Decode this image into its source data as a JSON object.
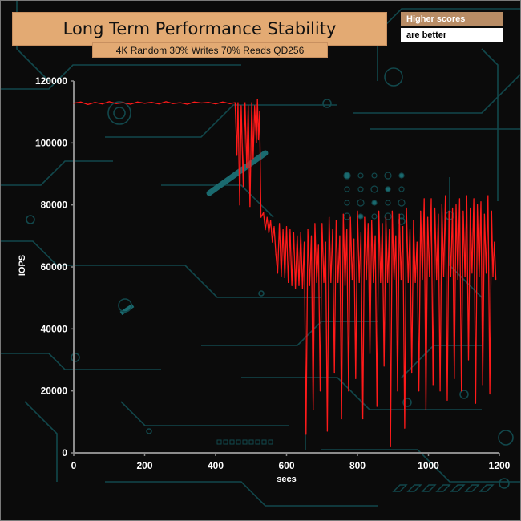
{
  "header": {
    "title": "Long Term Performance Stability",
    "subtitle": "4K Random 30% Writes 70% Reads QD256"
  },
  "badge": {
    "line1": "Higher scores",
    "line2": "are better"
  },
  "colors": {
    "series": "#ff1a1a",
    "title_bg": "#e3aa73",
    "badge_bg": "#b88c65",
    "background": "#0b0b0b",
    "circuit": "#12484c"
  },
  "chart_data": {
    "type": "line",
    "title": "Long Term Performance Stability",
    "subtitle": "4K Random 30% Writes 70% Reads QD256",
    "xlabel": "secs",
    "ylabel": "IOPS",
    "xlim": [
      0,
      1200
    ],
    "ylim": [
      0,
      120000
    ],
    "x_ticks": [
      0,
      200,
      400,
      600,
      800,
      1000,
      1200
    ],
    "y_ticks": [
      0,
      20000,
      40000,
      60000,
      80000,
      100000,
      120000
    ],
    "grid": false,
    "legend": "none",
    "series": [
      {
        "points": [
          [
            0,
            112800
          ],
          [
            20,
            113200
          ],
          [
            40,
            112400
          ],
          [
            60,
            113100
          ],
          [
            80,
            112600
          ],
          [
            100,
            113300
          ],
          [
            120,
            112700
          ],
          [
            140,
            113000
          ],
          [
            160,
            112500
          ],
          [
            180,
            113200
          ],
          [
            200,
            112800
          ],
          [
            220,
            113100
          ],
          [
            240,
            112600
          ],
          [
            260,
            113300
          ],
          [
            280,
            112700
          ],
          [
            300,
            113000
          ],
          [
            320,
            112500
          ],
          [
            340,
            113200
          ],
          [
            360,
            112900
          ],
          [
            380,
            113100
          ],
          [
            400,
            112600
          ],
          [
            420,
            113200
          ],
          [
            440,
            112700
          ],
          [
            455,
            113000
          ],
          [
            460,
            96000
          ],
          [
            463,
            113000
          ],
          [
            468,
            80000
          ],
          [
            472,
            112000
          ],
          [
            478,
            86000
          ],
          [
            483,
            113000
          ],
          [
            488,
            92000
          ],
          [
            492,
            112000
          ],
          [
            497,
            79500
          ],
          [
            502,
            113000
          ],
          [
            506,
            95000
          ],
          [
            510,
            112000
          ],
          [
            515,
            100000
          ],
          [
            518,
            114000
          ],
          [
            521,
            101000
          ],
          [
            524,
            110000
          ],
          [
            528,
            76000
          ],
          [
            535,
            77500
          ],
          [
            540,
            72000
          ],
          [
            545,
            76000
          ],
          [
            550,
            71000
          ],
          [
            555,
            75000
          ],
          [
            560,
            68000
          ],
          [
            565,
            73000
          ],
          [
            570,
            64000
          ],
          [
            575,
            58000
          ],
          [
            580,
            74000
          ],
          [
            585,
            57000
          ],
          [
            590,
            72000
          ],
          [
            595,
            56500
          ],
          [
            600,
            73000
          ],
          [
            605,
            55000
          ],
          [
            610,
            72000
          ],
          [
            615,
            54000
          ],
          [
            620,
            71000
          ],
          [
            625,
            53000
          ],
          [
            630,
            70000
          ],
          [
            635,
            54000
          ],
          [
            640,
            71000
          ],
          [
            645,
            53000
          ],
          [
            650,
            68000
          ],
          [
            655,
            6000
          ],
          [
            660,
            72000
          ],
          [
            665,
            54000
          ],
          [
            670,
            70000
          ],
          [
            675,
            14000
          ],
          [
            680,
            74000
          ],
          [
            685,
            55000
          ],
          [
            690,
            67000
          ],
          [
            695,
            20000
          ],
          [
            700,
            74000
          ],
          [
            705,
            55000
          ],
          [
            710,
            68000
          ],
          [
            715,
            7000
          ],
          [
            720,
            76000
          ],
          [
            725,
            55000
          ],
          [
            730,
            72000
          ],
          [
            735,
            26000
          ],
          [
            740,
            75000
          ],
          [
            745,
            55000
          ],
          [
            750,
            70000
          ],
          [
            755,
            11000
          ],
          [
            760,
            77000
          ],
          [
            765,
            54000
          ],
          [
            770,
            72000
          ],
          [
            775,
            20000
          ],
          [
            780,
            76000
          ],
          [
            785,
            56000
          ],
          [
            790,
            69000
          ],
          [
            795,
            24000
          ],
          [
            800,
            78000
          ],
          [
            805,
            55000
          ],
          [
            810,
            71000
          ],
          [
            815,
            11000
          ],
          [
            820,
            76000
          ],
          [
            825,
            56000
          ],
          [
            830,
            74000
          ],
          [
            835,
            32000
          ],
          [
            840,
            75000
          ],
          [
            845,
            55000
          ],
          [
            850,
            70000
          ],
          [
            855,
            15000
          ],
          [
            860,
            78000
          ],
          [
            865,
            55000
          ],
          [
            870,
            74000
          ],
          [
            875,
            28000
          ],
          [
            880,
            76000
          ],
          [
            885,
            55000
          ],
          [
            890,
            72000
          ],
          [
            893,
            2000
          ],
          [
            898,
            78000
          ],
          [
            903,
            56000
          ],
          [
            908,
            70000
          ],
          [
            913,
            20000
          ],
          [
            918,
            77000
          ],
          [
            923,
            56000
          ],
          [
            928,
            73000
          ],
          [
            933,
            8000
          ],
          [
            938,
            79000
          ],
          [
            943,
            55000
          ],
          [
            948,
            72000
          ],
          [
            953,
            26000
          ],
          [
            958,
            75000
          ],
          [
            963,
            55000
          ],
          [
            968,
            68000
          ],
          [
            973,
            20000
          ],
          [
            978,
            78000
          ],
          [
            983,
            56000
          ],
          [
            988,
            82000
          ],
          [
            993,
            14000
          ],
          [
            998,
            76000
          ],
          [
            1003,
            57000
          ],
          [
            1008,
            82000
          ],
          [
            1013,
            22000
          ],
          [
            1018,
            79000
          ],
          [
            1023,
            56000
          ],
          [
            1028,
            77000
          ],
          [
            1033,
            20000
          ],
          [
            1038,
            80000
          ],
          [
            1043,
            57000
          ],
          [
            1048,
            83000
          ],
          [
            1053,
            17000
          ],
          [
            1058,
            78000
          ],
          [
            1063,
            57000
          ],
          [
            1068,
            79000
          ],
          [
            1073,
            24000
          ],
          [
            1078,
            80000
          ],
          [
            1083,
            56000
          ],
          [
            1088,
            82000
          ],
          [
            1093,
            20000
          ],
          [
            1098,
            78000
          ],
          [
            1103,
            57000
          ],
          [
            1108,
            83000
          ],
          [
            1113,
            30000
          ],
          [
            1118,
            79000
          ],
          [
            1123,
            58000
          ],
          [
            1128,
            82000
          ],
          [
            1133,
            16000
          ],
          [
            1138,
            80000
          ],
          [
            1143,
            57000
          ],
          [
            1148,
            81000
          ],
          [
            1153,
            22000
          ],
          [
            1158,
            77000
          ],
          [
            1163,
            58000
          ],
          [
            1168,
            83000
          ],
          [
            1173,
            19000
          ],
          [
            1178,
            78000
          ],
          [
            1182,
            57000
          ],
          [
            1186,
            68000
          ],
          [
            1190,
            56000
          ]
        ]
      }
    ]
  }
}
